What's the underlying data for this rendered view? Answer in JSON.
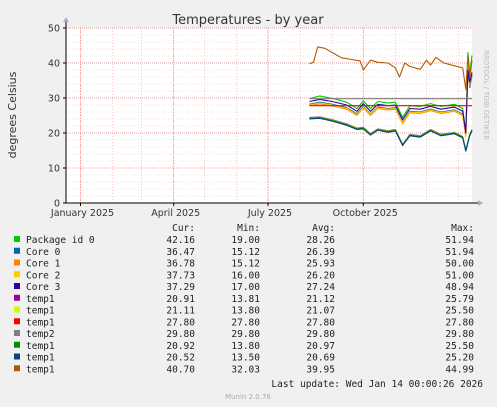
{
  "chart_data": {
    "type": "line",
    "title": "Temperatures - by year",
    "ylabel": "degrees Celsius",
    "ylim": [
      0,
      50
    ],
    "yticks": [
      0,
      10,
      20,
      30,
      40,
      50
    ],
    "x_range": [
      "2024-12-18",
      "2026-01-14"
    ],
    "xticks": [
      {
        "label": "January 2025",
        "date": "2025-01-01"
      },
      {
        "label": "April 2025",
        "date": "2025-04-01"
      },
      {
        "label": "July 2025",
        "date": "2025-07-01"
      },
      {
        "label": "October 2025",
        "date": "2025-10-01"
      }
    ],
    "grid": true,
    "side_label": "RRDTOOL / TOBI OETIKER",
    "legend_columns": [
      "Cur:",
      "Min:",
      "Avg:",
      "Max:"
    ],
    "series": [
      {
        "name": "Package id 0",
        "color": "#00cc00",
        "cur": "42.16",
        "min": "19.00",
        "avg": "28.26",
        "max": "51.94",
        "points": [
          [
            "2025-08-10",
            29.8
          ],
          [
            "2025-08-20",
            30.6
          ],
          [
            "2025-09-01",
            29.9
          ],
          [
            "2025-09-15",
            28.8
          ],
          [
            "2025-09-25",
            27.0
          ],
          [
            "2025-10-01",
            29.2
          ],
          [
            "2025-10-08",
            27.0
          ],
          [
            "2025-10-15",
            29.0
          ],
          [
            "2025-10-25",
            28.6
          ],
          [
            "2025-11-01",
            28.8
          ],
          [
            "2025-11-08",
            24.5
          ],
          [
            "2025-11-15",
            27.8
          ],
          [
            "2025-11-25",
            27.6
          ],
          [
            "2025-12-05",
            28.4
          ],
          [
            "2025-12-15",
            27.6
          ],
          [
            "2025-12-28",
            28.2
          ],
          [
            "2026-01-05",
            27.0
          ],
          [
            "2026-01-08",
            20.5
          ],
          [
            "2026-01-10",
            43.0
          ],
          [
            "2026-01-12",
            37.0
          ],
          [
            "2026-01-14",
            42.16
          ]
        ]
      },
      {
        "name": "Core 0",
        "color": "#0066b3",
        "cur": "36.47",
        "min": "15.12",
        "avg": "26.39",
        "max": "51.94",
        "points": [
          [
            "2025-08-10",
            28.2
          ],
          [
            "2025-08-20",
            28.8
          ],
          [
            "2025-09-01",
            28.2
          ],
          [
            "2025-09-15",
            27.2
          ],
          [
            "2025-09-25",
            25.5
          ],
          [
            "2025-10-01",
            27.6
          ],
          [
            "2025-10-08",
            25.4
          ],
          [
            "2025-10-15",
            27.4
          ],
          [
            "2025-10-25",
            27.0
          ],
          [
            "2025-11-01",
            27.2
          ],
          [
            "2025-11-08",
            23.0
          ],
          [
            "2025-11-15",
            26.2
          ],
          [
            "2025-11-25",
            26.0
          ],
          [
            "2025-12-05",
            26.8
          ],
          [
            "2025-12-15",
            26.0
          ],
          [
            "2025-12-28",
            26.6
          ],
          [
            "2026-01-05",
            25.4
          ],
          [
            "2026-01-08",
            19.5
          ],
          [
            "2026-01-10",
            37.5
          ],
          [
            "2026-01-12",
            33.0
          ],
          [
            "2026-01-14",
            36.47
          ]
        ]
      },
      {
        "name": "Core 1",
        "color": "#ff8000",
        "cur": "36.78",
        "min": "15.12",
        "avg": "25.93",
        "max": "50.00",
        "points": [
          [
            "2025-08-10",
            27.8
          ],
          [
            "2025-08-20",
            28.3
          ],
          [
            "2025-09-01",
            27.8
          ],
          [
            "2025-09-15",
            26.8
          ],
          [
            "2025-09-25",
            25.0
          ],
          [
            "2025-10-01",
            27.2
          ],
          [
            "2025-10-08",
            25.0
          ],
          [
            "2025-10-15",
            27.0
          ],
          [
            "2025-10-25",
            26.6
          ],
          [
            "2025-11-01",
            26.8
          ],
          [
            "2025-11-08",
            22.6
          ],
          [
            "2025-11-15",
            25.8
          ],
          [
            "2025-11-25",
            25.6
          ],
          [
            "2025-12-05",
            26.4
          ],
          [
            "2025-12-15",
            25.6
          ],
          [
            "2025-12-28",
            26.2
          ],
          [
            "2026-01-05",
            25.0
          ],
          [
            "2026-01-08",
            19.0
          ],
          [
            "2026-01-10",
            40.0
          ],
          [
            "2026-01-12",
            33.5
          ],
          [
            "2026-01-14",
            36.78
          ]
        ]
      },
      {
        "name": "Core 2",
        "color": "#ffcc00",
        "cur": "37.73",
        "min": "16.00",
        "avg": "26.20",
        "max": "51.00",
        "points": [
          [
            "2025-08-10",
            28.0
          ],
          [
            "2025-08-20",
            28.6
          ],
          [
            "2025-09-01",
            28.0
          ],
          [
            "2025-09-15",
            27.0
          ],
          [
            "2025-09-25",
            25.2
          ],
          [
            "2025-10-01",
            27.4
          ],
          [
            "2025-10-08",
            25.2
          ],
          [
            "2025-10-15",
            27.2
          ],
          [
            "2025-10-25",
            26.8
          ],
          [
            "2025-11-01",
            27.0
          ],
          [
            "2025-11-08",
            22.8
          ],
          [
            "2025-11-15",
            26.0
          ],
          [
            "2025-11-25",
            25.8
          ],
          [
            "2025-12-05",
            26.6
          ],
          [
            "2025-12-15",
            25.8
          ],
          [
            "2025-12-28",
            26.4
          ],
          [
            "2026-01-05",
            25.2
          ],
          [
            "2026-01-08",
            19.2
          ],
          [
            "2026-01-10",
            41.0
          ],
          [
            "2026-01-12",
            34.0
          ],
          [
            "2026-01-14",
            37.73
          ]
        ]
      },
      {
        "name": "Core 3",
        "color": "#330099",
        "cur": "37.29",
        "min": "17.00",
        "avg": "27.24",
        "max": "48.94",
        "points": [
          [
            "2025-08-10",
            29.0
          ],
          [
            "2025-08-20",
            29.6
          ],
          [
            "2025-09-01",
            29.0
          ],
          [
            "2025-09-15",
            28.0
          ],
          [
            "2025-09-25",
            26.2
          ],
          [
            "2025-10-01",
            28.4
          ],
          [
            "2025-10-08",
            26.2
          ],
          [
            "2025-10-15",
            28.2
          ],
          [
            "2025-10-25",
            27.8
          ],
          [
            "2025-11-01",
            28.0
          ],
          [
            "2025-11-08",
            23.8
          ],
          [
            "2025-11-15",
            27.0
          ],
          [
            "2025-11-25",
            26.8
          ],
          [
            "2025-12-05",
            27.6
          ],
          [
            "2025-12-15",
            26.8
          ],
          [
            "2025-12-28",
            27.4
          ],
          [
            "2026-01-05",
            26.2
          ],
          [
            "2026-01-08",
            20.0
          ],
          [
            "2026-01-10",
            38.0
          ],
          [
            "2026-01-12",
            34.5
          ],
          [
            "2026-01-14",
            37.29
          ]
        ]
      },
      {
        "name": "temp1",
        "color": "#990099",
        "cur": "20.91",
        "min": "13.81",
        "avg": "21.12",
        "max": "25.79",
        "points": [
          [
            "2025-08-10",
            24.4
          ],
          [
            "2025-08-20",
            24.6
          ],
          [
            "2025-09-01",
            23.8
          ],
          [
            "2025-09-15",
            22.6
          ],
          [
            "2025-09-25",
            21.4
          ],
          [
            "2025-10-01",
            21.6
          ],
          [
            "2025-10-08",
            19.8
          ],
          [
            "2025-10-15",
            21.2
          ],
          [
            "2025-10-25",
            20.6
          ],
          [
            "2025-11-01",
            21.0
          ],
          [
            "2025-11-08",
            16.8
          ],
          [
            "2025-11-15",
            19.6
          ],
          [
            "2025-11-25",
            19.2
          ],
          [
            "2025-12-05",
            21.0
          ],
          [
            "2025-12-15",
            19.6
          ],
          [
            "2025-12-28",
            20.2
          ],
          [
            "2026-01-05",
            19.0
          ],
          [
            "2026-01-08",
            15.2
          ],
          [
            "2026-01-12",
            19.8
          ],
          [
            "2026-01-14",
            20.91
          ]
        ]
      },
      {
        "name": "temp1",
        "color": "#ccff00",
        "cur": "21.11",
        "min": "13.80",
        "avg": "21.07",
        "max": "25.50",
        "points": [
          [
            "2025-08-10",
            24.3
          ],
          [
            "2025-08-20",
            24.5
          ],
          [
            "2025-09-01",
            23.7
          ],
          [
            "2025-09-15",
            22.5
          ],
          [
            "2025-09-25",
            21.3
          ],
          [
            "2025-10-01",
            21.5
          ],
          [
            "2025-10-08",
            19.7
          ],
          [
            "2025-10-15",
            21.1
          ],
          [
            "2025-10-25",
            20.5
          ],
          [
            "2025-11-01",
            20.9
          ],
          [
            "2025-11-08",
            16.7
          ],
          [
            "2025-11-15",
            19.5
          ],
          [
            "2025-11-25",
            19.1
          ],
          [
            "2025-12-05",
            20.9
          ],
          [
            "2025-12-15",
            19.5
          ],
          [
            "2025-12-28",
            20.1
          ],
          [
            "2026-01-05",
            18.9
          ],
          [
            "2026-01-08",
            15.1
          ],
          [
            "2026-01-12",
            19.9
          ],
          [
            "2026-01-14",
            21.11
          ]
        ]
      },
      {
        "name": "temp1",
        "color": "#ff0000",
        "cur": "27.80",
        "min": "27.80",
        "avg": "27.80",
        "max": "27.80",
        "points": [
          [
            "2025-08-10",
            27.8
          ],
          [
            "2026-01-14",
            27.8
          ]
        ]
      },
      {
        "name": "temp2",
        "color": "#808080",
        "cur": "29.80",
        "min": "29.80",
        "avg": "29.80",
        "max": "29.80",
        "points": [
          [
            "2025-08-10",
            29.8
          ],
          [
            "2026-01-14",
            29.8
          ]
        ]
      },
      {
        "name": "temp1",
        "color": "#008f00",
        "cur": "20.92",
        "min": "13.80",
        "avg": "20.97",
        "max": "25.50",
        "points": [
          [
            "2025-08-10",
            24.2
          ],
          [
            "2025-08-20",
            24.4
          ],
          [
            "2025-09-01",
            23.6
          ],
          [
            "2025-09-15",
            22.4
          ],
          [
            "2025-09-25",
            21.2
          ],
          [
            "2025-10-01",
            21.4
          ],
          [
            "2025-10-08",
            19.6
          ],
          [
            "2025-10-15",
            21.0
          ],
          [
            "2025-10-25",
            20.4
          ],
          [
            "2025-11-01",
            20.8
          ],
          [
            "2025-11-08",
            16.6
          ],
          [
            "2025-11-15",
            19.4
          ],
          [
            "2025-11-25",
            19.0
          ],
          [
            "2025-12-05",
            20.8
          ],
          [
            "2025-12-15",
            19.4
          ],
          [
            "2025-12-28",
            20.0
          ],
          [
            "2026-01-05",
            18.8
          ],
          [
            "2026-01-08",
            15.0
          ],
          [
            "2026-01-12",
            19.6
          ],
          [
            "2026-01-14",
            20.92
          ]
        ]
      },
      {
        "name": "temp1",
        "color": "#00487d",
        "cur": "20.52",
        "min": "13.50",
        "avg": "20.69",
        "max": "25.20",
        "points": [
          [
            "2025-08-10",
            24.0
          ],
          [
            "2025-08-20",
            24.2
          ],
          [
            "2025-09-01",
            23.4
          ],
          [
            "2025-09-15",
            22.2
          ],
          [
            "2025-09-25",
            21.0
          ],
          [
            "2025-10-01",
            21.2
          ],
          [
            "2025-10-08",
            19.4
          ],
          [
            "2025-10-15",
            20.8
          ],
          [
            "2025-10-25",
            20.2
          ],
          [
            "2025-11-01",
            20.6
          ],
          [
            "2025-11-08",
            16.4
          ],
          [
            "2025-11-15",
            19.2
          ],
          [
            "2025-11-25",
            18.8
          ],
          [
            "2025-12-05",
            20.6
          ],
          [
            "2025-12-15",
            19.2
          ],
          [
            "2025-12-28",
            19.8
          ],
          [
            "2026-01-05",
            18.6
          ],
          [
            "2026-01-08",
            14.8
          ],
          [
            "2026-01-12",
            19.4
          ],
          [
            "2026-01-14",
            20.52
          ]
        ]
      },
      {
        "name": "temp1",
        "color": "#b35a00",
        "cur": "40.70",
        "min": "32.03",
        "avg": "39.95",
        "max": "44.99",
        "points": [
          [
            "2025-08-10",
            39.8
          ],
          [
            "2025-08-14",
            40.2
          ],
          [
            "2025-08-18",
            44.6
          ],
          [
            "2025-08-25",
            44.2
          ],
          [
            "2025-09-01",
            43.0
          ],
          [
            "2025-09-10",
            41.5
          ],
          [
            "2025-09-20",
            41.0
          ],
          [
            "2025-09-28",
            40.6
          ],
          [
            "2025-10-01",
            38.0
          ],
          [
            "2025-10-08",
            40.8
          ],
          [
            "2025-10-15",
            40.2
          ],
          [
            "2025-10-25",
            40.0
          ],
          [
            "2025-11-01",
            38.6
          ],
          [
            "2025-11-05",
            36.0
          ],
          [
            "2025-11-10",
            40.0
          ],
          [
            "2025-11-15",
            39.0
          ],
          [
            "2025-11-25",
            38.2
          ],
          [
            "2025-12-01",
            40.8
          ],
          [
            "2025-12-05",
            39.4
          ],
          [
            "2025-12-10",
            41.6
          ],
          [
            "2025-12-18",
            40.0
          ],
          [
            "2025-12-28",
            39.2
          ],
          [
            "2026-01-05",
            38.6
          ],
          [
            "2026-01-08",
            32.5
          ],
          [
            "2026-01-10",
            42.0
          ],
          [
            "2026-01-12",
            36.0
          ],
          [
            "2026-01-14",
            40.7
          ]
        ]
      }
    ],
    "last_update": "Last update: Wed Jan 14 00:00:26 2026",
    "footer": "Munin 2.0.76"
  }
}
